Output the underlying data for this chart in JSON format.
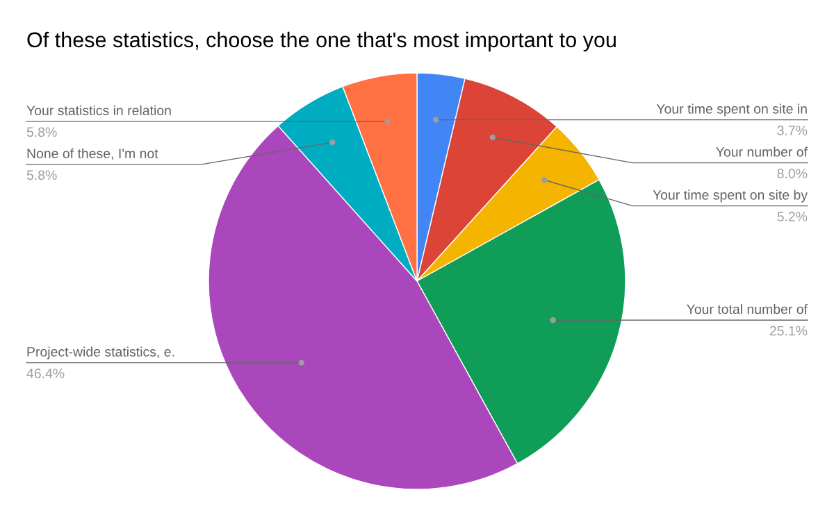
{
  "chart_data": {
    "type": "pie",
    "title": "Of these statistics, choose the one that's most important to you",
    "categories": [
      "Your time spent on site in",
      "Your number of",
      "Your time spent on site by",
      "Your total number of",
      "Project-wide statistics, e.",
      "None of these, I'm not",
      "Your statistics in relation"
    ],
    "values": [
      3.7,
      8.0,
      5.2,
      25.1,
      46.4,
      5.8,
      5.8
    ],
    "value_labels": [
      "3.7%",
      "8.0%",
      "5.2%",
      "25.1%",
      "46.4%",
      "5.8%",
      "5.8%"
    ],
    "colors": [
      "#4285f4",
      "#db4437",
      "#f4b400",
      "#0f9d58",
      "#ab47bc",
      "#00acc1",
      "#ff7043"
    ]
  }
}
